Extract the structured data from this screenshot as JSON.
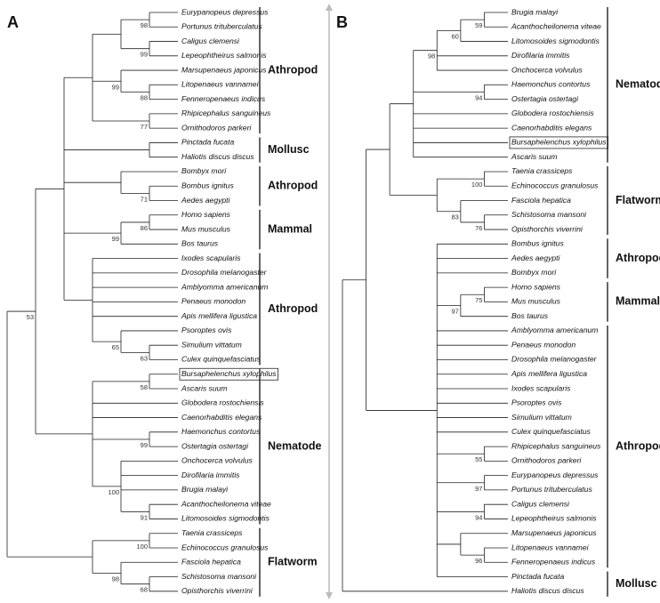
{
  "panels": [
    {
      "label": "A",
      "groups": [
        {
          "label": "Athropod",
          "taxa": [
            "Eurypanopeus depressus",
            "Portunus trituberculatus",
            "Caligus clemensi",
            "Lepeophtheirus salmonis",
            "Marsupenaeus japonicus",
            "Litopenaeus vannamei",
            "Fenneropenaeus indicus",
            "Rhipicephalus sanguineus",
            "Ornithodoros parkeri"
          ]
        },
        {
          "label": "Mollusc",
          "taxa": [
            "Pinctada fucata",
            "Haliotis discus discus"
          ]
        },
        {
          "label": "Athropod",
          "taxa": [
            "Bombyx mori",
            "Bombus ignitus",
            "Aedes aegypti"
          ]
        },
        {
          "label": "Mammal",
          "taxa": [
            "Homo sapiens",
            "Mus musculus",
            "Bos taurus"
          ]
        },
        {
          "label": "Athropod",
          "taxa": [
            "Ixodes scapularis",
            "Drosophila melanogaster",
            "Amblyomma americanum",
            "Penaeus monodon",
            "Apis mellifera ligustica",
            "Psoroptes ovis",
            "Simulium vittatum",
            "Culex quinquefasciatus"
          ]
        },
        {
          "label": "Nematode",
          "taxa": [
            "Bursaphelenchus xylophilus",
            "Ascaris suum",
            "Globodera rostochiensis",
            "Caenorhabditis elegans",
            "Haemonchus contortus",
            "Ostertagia ostertagi",
            "Onchocerca volvulus",
            "Dirofilaria immitis",
            "Brugia malayi",
            "Acanthocheilonema viteae",
            "Litomosoides sigmodontis"
          ]
        },
        {
          "label": "Flatworm",
          "taxa": [
            "Taenia crassiceps",
            "Echinococcus granulosus",
            "Fasciola hepatica",
            "Schistosoma mansoni",
            "Opisthorchis viverrini"
          ]
        }
      ],
      "bootstrap": [
        98,
        99,
        99,
        88,
        77,
        71,
        86,
        99,
        53,
        65,
        63,
        58,
        99,
        100,
        91,
        100,
        98,
        68
      ]
    },
    {
      "label": "B",
      "groups": [
        {
          "label": "Nematode",
          "taxa": [
            "Brugia malayi",
            "Acanthocheilonema viteae",
            "Litomosoides sigmodontis",
            "Dirofilaria immitis",
            "Onchocerca volvulus",
            "Haemonchus contortus",
            "Ostertagia ostertagi",
            "Globodera rostochiensis",
            "Caenorhabditis elegans",
            "Bursaphelenchus xylophilus",
            "Ascaris suum"
          ]
        },
        {
          "label": "Flatworm",
          "taxa": [
            "Taenia crassiceps",
            "Echinococcus granulosus",
            "Fasciola hepatica",
            "Schistosoma mansoni",
            "Opisthorchis viverrini"
          ]
        },
        {
          "label": "Athropod",
          "taxa": [
            "Bombus ignitus",
            "Aedes aegypti",
            "Bombyx mori"
          ]
        },
        {
          "label": "Mammal",
          "taxa": [
            "Homo sapiens",
            "Mus musculus",
            "Bos taurus"
          ]
        },
        {
          "label": "Athropod",
          "taxa": [
            "Amblyomma americanum",
            "Penaeus monodon",
            "Drosophila melanogaster",
            "Apis mellifera ligustica",
            "Ixodes scapularis",
            "Psoroptes ovis",
            "Simulium vittatum",
            "Culex quinquefasciatus",
            "Rhipicephalus sanguineus",
            "Ornithodoros parkeri",
            "Eurypanopeus depressus",
            "Portunus trituberculatus",
            "Caligus clemensi",
            "Lepeophtheirus salmonis",
            "Marsupenaeus japonicus",
            "Litopenaeus vannamei",
            "Fenneropenaeus indicus"
          ]
        },
        {
          "label": "Mollusc",
          "taxa": [
            "Pinctada fucata",
            "Haliotis discus discus"
          ]
        }
      ],
      "bootstrap": [
        59,
        60,
        98,
        94,
        100,
        83,
        76,
        75,
        97,
        55,
        97,
        94,
        96
      ]
    }
  ]
}
